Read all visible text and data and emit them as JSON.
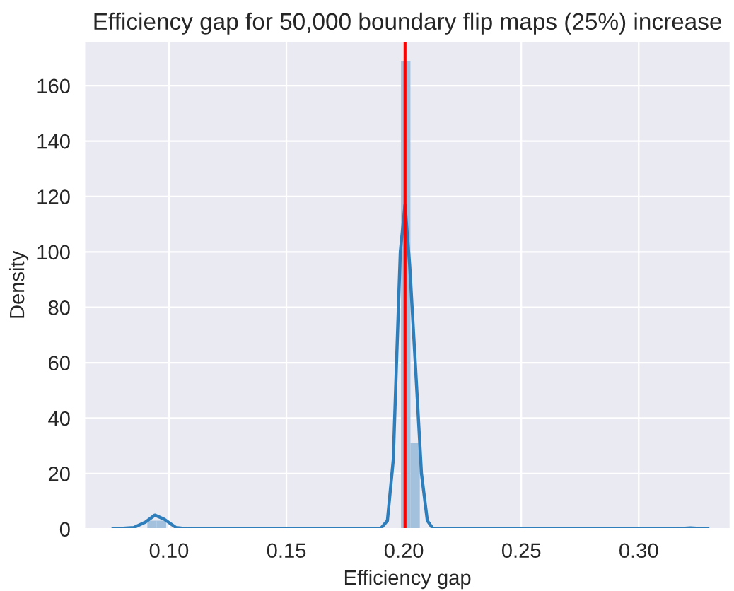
{
  "chart_data": {
    "type": "histogram",
    "title": "Efficiency gap for 50,000 boundary flip maps (25%) increase",
    "xlabel": "Efficiency gap",
    "ylabel": "Density",
    "bins": [
      0.0908,
      0.0948,
      0.0988,
      0.1028,
      0.1068,
      0.1108,
      0.1148,
      0.1188,
      0.1228,
      0.1268,
      0.1308,
      0.1348,
      0.1388,
      0.1428,
      0.1468,
      0.1508,
      0.1548,
      0.1588,
      0.1628,
      0.1668,
      0.1708,
      0.1748,
      0.1788,
      0.1828,
      0.1868,
      0.1908,
      0.1948,
      0.1988,
      0.2028,
      0.2068,
      0.2108,
      0.2148,
      0.2188,
      0.2228,
      0.2268,
      0.2308,
      0.2348,
      0.2388,
      0.2428,
      0.2468,
      0.2508,
      0.2548,
      0.2588,
      0.2628,
      0.2668,
      0.2708,
      0.2748,
      0.2788,
      0.2828,
      0.2868,
      0.2908,
      0.2948,
      0.2988,
      0.3028,
      0.3068,
      0.3108,
      0.3148,
      0.3188,
      0.3228
    ],
    "values": [
      3,
      3,
      0,
      0,
      0,
      0,
      0,
      0,
      0,
      0,
      0,
      0,
      0,
      0,
      0,
      0,
      0,
      0,
      0,
      0,
      0,
      0,
      0,
      0,
      0,
      0,
      0,
      169,
      31,
      0,
      0,
      0,
      0,
      0,
      0,
      0,
      0,
      0,
      0,
      0,
      0,
      0,
      0,
      0,
      0,
      0,
      0,
      0,
      0,
      0,
      0,
      0,
      0,
      0,
      0,
      0,
      0,
      0.5
    ],
    "color": "#a3c0dc",
    "series": [
      {
        "type": "line",
        "color": "#2f7ebc",
        "x": [
          0.076,
          0.085,
          0.09,
          0.094,
          0.098,
          0.103,
          0.108,
          0.19,
          0.193,
          0.1955,
          0.1968,
          0.1985,
          0.2005,
          0.2025,
          0.205,
          0.2075,
          0.21,
          0.2125,
          0.315,
          0.322,
          0.3296
        ],
        "values": [
          0,
          0.5,
          2.5,
          5,
          3.5,
          0.5,
          0,
          0,
          3,
          25,
          58,
          100,
          117,
          95,
          58,
          20,
          3,
          0,
          0,
          0.4,
          0
        ]
      }
    ],
    "ref_lines": [
      {
        "axis": "x",
        "value": 0.2005,
        "color": "#ff0000"
      }
    ],
    "xlim": [
      0.064,
      0.339
    ],
    "ylim": [
      0,
      176
    ],
    "xticks": [
      {
        "value": 0.1,
        "label": "0.10"
      },
      {
        "value": 0.15,
        "label": "0.15"
      },
      {
        "value": 0.2,
        "label": "0.20"
      },
      {
        "value": 0.25,
        "label": "0.25"
      },
      {
        "value": 0.3,
        "label": "0.30"
      }
    ],
    "yticks": [
      0,
      20,
      40,
      60,
      80,
      100,
      120,
      140,
      160
    ],
    "grid": true
  }
}
